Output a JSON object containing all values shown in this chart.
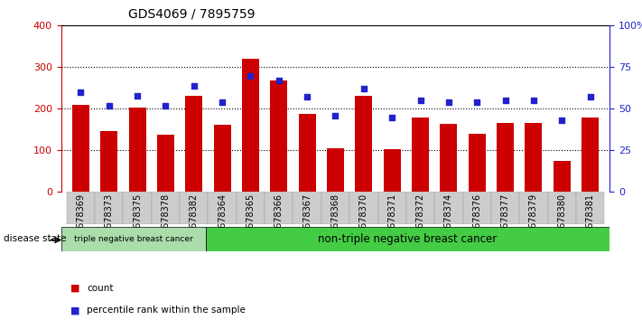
{
  "title": "GDS4069 / 7895759",
  "samples": [
    "GSM678369",
    "GSM678373",
    "GSM678375",
    "GSM678378",
    "GSM678382",
    "GSM678364",
    "GSM678365",
    "GSM678366",
    "GSM678367",
    "GSM678368",
    "GSM678370",
    "GSM678371",
    "GSM678372",
    "GSM678374",
    "GSM678376",
    "GSM678377",
    "GSM678379",
    "GSM678380",
    "GSM678381"
  ],
  "counts": [
    210,
    147,
    203,
    137,
    232,
    162,
    320,
    268,
    188,
    105,
    232,
    102,
    178,
    163,
    140,
    165,
    165,
    75,
    180
  ],
  "percentiles": [
    60,
    52,
    58,
    52,
    64,
    54,
    70,
    67,
    57,
    46,
    62,
    45,
    55,
    54,
    54,
    55,
    55,
    43,
    57
  ],
  "bar_color": "#cc0000",
  "dot_color": "#2222cc",
  "left_yaxis_color": "#cc0000",
  "right_yaxis_color": "#2222cc",
  "left_ylim": [
    0,
    400
  ],
  "right_ylim": [
    0,
    100
  ],
  "left_yticks": [
    0,
    100,
    200,
    300,
    400
  ],
  "right_yticks": [
    0,
    25,
    50,
    75,
    100
  ],
  "right_yticklabels": [
    "0",
    "25",
    "50",
    "75",
    "100%"
  ],
  "group1_count": 5,
  "group1_label": "triple negative breast cancer",
  "group2_label": "non-triple negative breast cancer",
  "group1_color": "#aaddaa",
  "group2_color": "#44cc44",
  "disease_state_label": "disease state",
  "legend_count_label": "count",
  "legend_pct_label": "percentile rank within the sample",
  "bar_width": 0.6
}
